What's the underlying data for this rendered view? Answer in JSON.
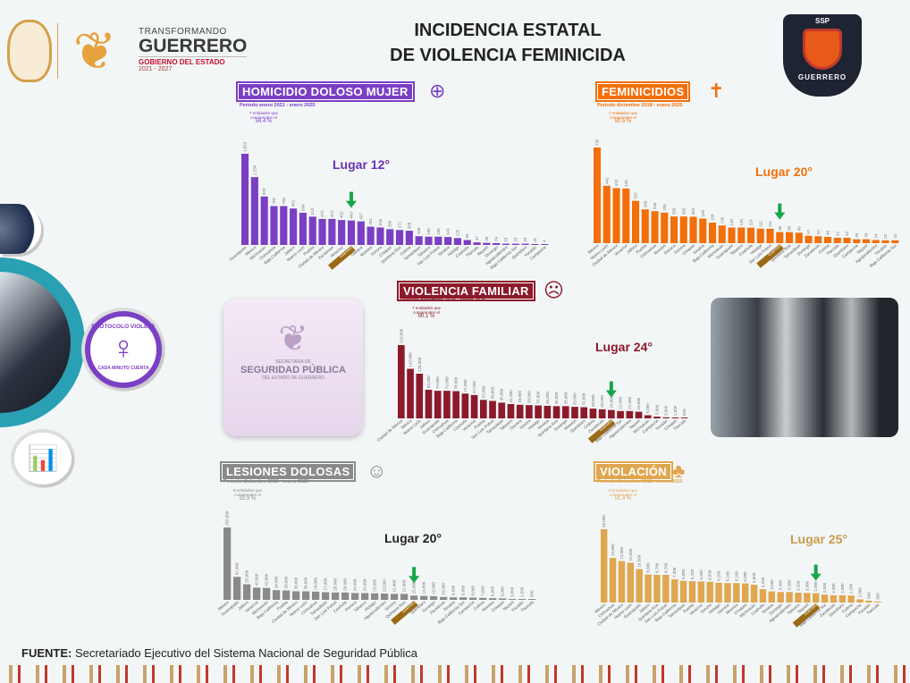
{
  "header": {
    "title_line1": "INCIDENCIA ESTATAL",
    "title_line2": "DE VIOLENCIA FEMINICIDA",
    "gov": {
      "line1": "TRANSFORMANDO",
      "line2": "GUERRERO",
      "line3": "GOBIERNO DEL ESTADO",
      "line4": "2021 - 2027"
    },
    "ssp_badge": {
      "top": "SSP",
      "bottom": "GUERRERO"
    }
  },
  "side": {
    "protocol_top": "PROTOCOLO VIOLETA",
    "protocol_bottom": "CADA MINUTO CUENTA"
  },
  "ssp_card": {
    "line1": "SECRETARÍA DE",
    "line2": "SEGURIDAD PÚBLICA",
    "line3": "DEL ESTADO DE GUERRERO"
  },
  "footer": {
    "label": "FUENTE:",
    "text": " Secretariado Ejecutivo del Sistema Nacional de Seguridad Pública"
  },
  "chart_data": [
    {
      "type": "bar",
      "title": "HOMICIDIO DOLOSO MUJER",
      "subtitle": "Periodo enero 2021 - enero 2025",
      "note": "7 entidades que comprenden el",
      "note_pct": "54.4 %",
      "annotation": "Lugar 12°",
      "highlight": "Guerrero",
      "color": "#7b3fc4",
      "icon": "target-icon",
      "categories": [
        "Guanajuato",
        "México",
        "Michoacán",
        "Chihuahua",
        "Baja California",
        "Jalisco",
        "Nuevo León",
        "Puebla",
        "Ciudad de México",
        "Zacatecas",
        "Veracruz",
        "Guerrero",
        "Oaxaca",
        "Morelos",
        "Sonora",
        "Chiapas",
        "Quintana Roo",
        "Colima",
        "Tamaulipas",
        "Tabasco",
        "San Luis Potosí",
        "Sinaloa",
        "Hidalgo",
        "Coahuila",
        "Tlaxcala",
        "Nayarit",
        "Durango",
        "Aguascalientes",
        "Baja California Sur",
        "Querétaro",
        "Yucatán",
        "Campeche"
      ],
      "values": [
        1653,
        1230,
        878,
        705,
        705,
        661,
        584,
        513,
        472,
        472,
        452,
        443,
        427,
        331,
        316,
        286,
        271,
        258,
        158,
        150,
        150,
        144,
        125,
        90,
        47,
        38,
        34,
        23,
        23,
        23,
        15,
        4
      ]
    },
    {
      "type": "bar",
      "title": "FEMINICIDIOS",
      "subtitle": "Periodo diciembre 2018 - enero 2025",
      "note": "7 entidades que comprenden el",
      "note_pct": "50.5 %",
      "annotation": "Lugar 20°",
      "highlight": "Guerrero",
      "color": "#f26f0a",
      "icon": "crosses-icon",
      "categories": [
        "México",
        "Nuevo León",
        "Ciudad de México",
        "Veracruz",
        "Jalisco",
        "Puebla",
        "Chihuahua",
        "Morelos",
        "Oaxaca",
        "Sonora",
        "Chiapas",
        "Sinaloa",
        "Baja California",
        "Michoacán",
        "Guanajuato",
        "Tabasco",
        "Coahuila",
        "Hidalgo",
        "San Luis Potosí",
        "Guerrero",
        "Quintana Roo",
        "Tamaulipas",
        "Durango",
        "Zacatecas",
        "Colima",
        "Tlaxcala",
        "Querétaro",
        "Campeche",
        "Nayarit",
        "Aguascalientes",
        "Yucatán",
        "Baja California Sur"
      ],
      "values": [
        735,
        441,
        423,
        420,
        325,
        260,
        246,
        235,
        205,
        205,
        203,
        189,
        158,
        136,
        120,
        120,
        119,
        111,
        111,
        85,
        85,
        80,
        57,
        53,
        48,
        42,
        42,
        30,
        30,
        24,
        22,
        22
      ]
    },
    {
      "type": "bar",
      "title": "VIOLENCIA FAMILIAR",
      "subtitle": "Periodo diciembre 2018 - enero 2025",
      "note": "7 entidades que comprenden el",
      "note_pct": "50.1 %",
      "annotation": "Lugar 24°",
      "highlight": "Guerrero",
      "color": "#8b1a2b",
      "icon": "head-icon",
      "categories": [
        "Ciudad de México",
        "México",
        "Nuevo León",
        "Jalisco",
        "Guanajuato",
        "Chihuahua",
        "Baja California",
        "Coahuila",
        "Veracruz",
        "Puebla",
        "San Luis Potosí",
        "Tamaulipas",
        "Tabasco",
        "Oaxaca",
        "Sonora",
        "Hidalgo",
        "Sinaloa",
        "Quintana Roo",
        "Durango",
        "Morelos",
        "Querétaro",
        "Colima",
        "Zacatecas",
        "Guerrero",
        "Baja California Sur",
        "Aguascalientes",
        "Nayarit",
        "Michoacán",
        "Campeche",
        "Yucatán",
        "Chiapas",
        "Tlaxcala"
      ],
      "values": [
        210000,
        142000,
        128000,
        82000,
        79000,
        79000,
        78000,
        71000,
        67000,
        53000,
        50000,
        45000,
        41000,
        39000,
        38000,
        37000,
        36000,
        35000,
        35000,
        33000,
        32000,
        28000,
        26000,
        24000,
        21000,
        21000,
        19000,
        9000,
        5000,
        3000,
        1500,
        600
      ]
    },
    {
      "type": "bar",
      "title": "LESIONES DOLOSAS",
      "subtitle": "Periodo diciembre 2018 - enero 2025",
      "note": "8 entidades que comprenden el",
      "note_pct": "52.9 %",
      "annotation": "Lugar 20°",
      "highlight": "Guerrero",
      "color": "#8a8a8a",
      "icon": "injured-person-icon",
      "categories": [
        "México",
        "Guanajuato",
        "Jalisco",
        "Veracruz",
        "Michoacán",
        "Baja California",
        "Puebla",
        "Ciudad de México",
        "Nuevo León",
        "Chihuahua",
        "Tamaulipas",
        "San Luis Potosí",
        "Coahuila",
        "Oaxaca",
        "Tabasco",
        "Hidalgo",
        "Aguascalientes",
        "Sonora",
        "Quintana Roo",
        "Guerrero",
        "Querétaro",
        "Durango",
        "Zacatecas",
        "Sinaloa",
        "Baja California Sur",
        "Campeche",
        "Colima",
        "Morelos",
        "Chiapas",
        "Nayarit",
        "Yucatán",
        "Tlaxcala"
      ],
      "values": [
        255000,
        81000,
        55000,
        43000,
        42000,
        34000,
        33000,
        30000,
        30000,
        29000,
        27000,
        26000,
        26000,
        24000,
        24000,
        23000,
        22000,
        21000,
        21000,
        15000,
        14000,
        13000,
        10000,
        9000,
        9000,
        8000,
        7000,
        6000,
        5000,
        3000,
        1500,
        900
      ]
    },
    {
      "type": "bar",
      "title": "VIOLACIÓN",
      "subtitle": "Periodo diciembre 2018 - enero 2025",
      "note": "8 entidades que comprenden el",
      "note_pct": "51.4 %",
      "annotation": "Lugar 25°",
      "highlight": "Guerrero",
      "color": "#e0a650",
      "icon": "group-icon",
      "categories": [
        "México",
        "Chihuahua",
        "Ciudad de México",
        "Nuevo León",
        "Guanajuato",
        "Jalisco",
        "Quintana Roo",
        "San Luis Potosí",
        "Baja California",
        "Tamaulipas",
        "Puebla",
        "Veracruz",
        "Sonora",
        "Hidalgo",
        "Oaxaca",
        "Morelos",
        "Chiapas",
        "Michoacán",
        "Coahuila",
        "Sinaloa",
        "Durango",
        "Aguascalientes",
        "Tabasco",
        "Nayarit",
        "Guerrero",
        "Baja California Sur",
        "Zacatecas",
        "Querétaro",
        "Colima",
        "Campeche",
        "Yucatán",
        "Tlaxcala"
      ],
      "values": [
        23000,
        14000,
        13000,
        12500,
        10500,
        8800,
        8700,
        8700,
        7300,
        6800,
        6700,
        6600,
        6500,
        6200,
        6100,
        6100,
        6000,
        5600,
        4200,
        3500,
        3300,
        3300,
        3100,
        3000,
        2900,
        2500,
        2300,
        2300,
        2200,
        1000,
        600,
        300
      ]
    }
  ]
}
